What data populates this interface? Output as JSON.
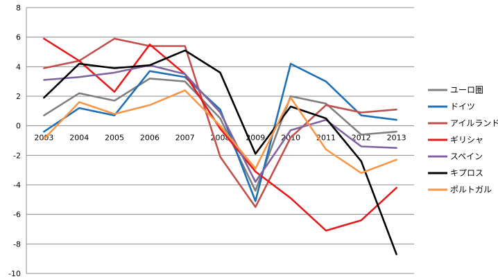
{
  "chart_data": {
    "type": "line",
    "title": "",
    "xlabel": "",
    "ylabel": "",
    "categories": [
      "2003",
      "2004",
      "2005",
      "2006",
      "2007",
      "2008",
      "2009",
      "2010",
      "2011",
      "2012",
      "2013"
    ],
    "ylim": [
      -10,
      8
    ],
    "yticks": [
      8,
      6,
      4,
      2,
      0,
      -2,
      -4,
      -6,
      -8,
      -10
    ],
    "grid": true,
    "legend_position": "right",
    "series": [
      {
        "name": "ユーロ圏",
        "color": "#7f7f7f",
        "values": [
          0.7,
          2.2,
          1.7,
          3.2,
          3.0,
          0.5,
          -4.4,
          2.0,
          1.5,
          -0.6,
          -0.4
        ]
      },
      {
        "name": "ドイツ",
        "color": "#1f6fb4",
        "values": [
          -0.4,
          1.2,
          0.7,
          3.7,
          3.3,
          1.1,
          -5.1,
          4.2,
          3.0,
          0.7,
          0.4
        ]
      },
      {
        "name": "アイルランド",
        "color": "#bf504d",
        "values": [
          3.9,
          4.4,
          5.9,
          5.4,
          5.4,
          -2.1,
          -5.5,
          -0.8,
          1.4,
          0.9,
          1.1
        ]
      },
      {
        "name": "ギリシャ",
        "color": "#e41a1c",
        "values": [
          5.9,
          4.4,
          2.3,
          5.5,
          3.5,
          -0.2,
          -3.1,
          -4.9,
          -7.1,
          -6.4,
          -4.2
        ]
      },
      {
        "name": "スペイン",
        "color": "#8064a2",
        "values": [
          3.1,
          3.3,
          3.6,
          4.1,
          3.5,
          0.9,
          -3.8,
          -0.3,
          0.4,
          -1.4,
          -1.5
        ]
      },
      {
        "name": "キプロス",
        "color": "#000000",
        "values": [
          1.9,
          4.2,
          3.9,
          4.1,
          5.1,
          3.6,
          -1.9,
          1.3,
          0.5,
          -2.4,
          -8.7
        ]
      },
      {
        "name": "ポルトガル",
        "color": "#f79646",
        "values": [
          -0.9,
          1.6,
          0.8,
          1.4,
          2.4,
          0.0,
          -2.9,
          1.9,
          -1.6,
          -3.2,
          -2.3
        ]
      }
    ]
  }
}
